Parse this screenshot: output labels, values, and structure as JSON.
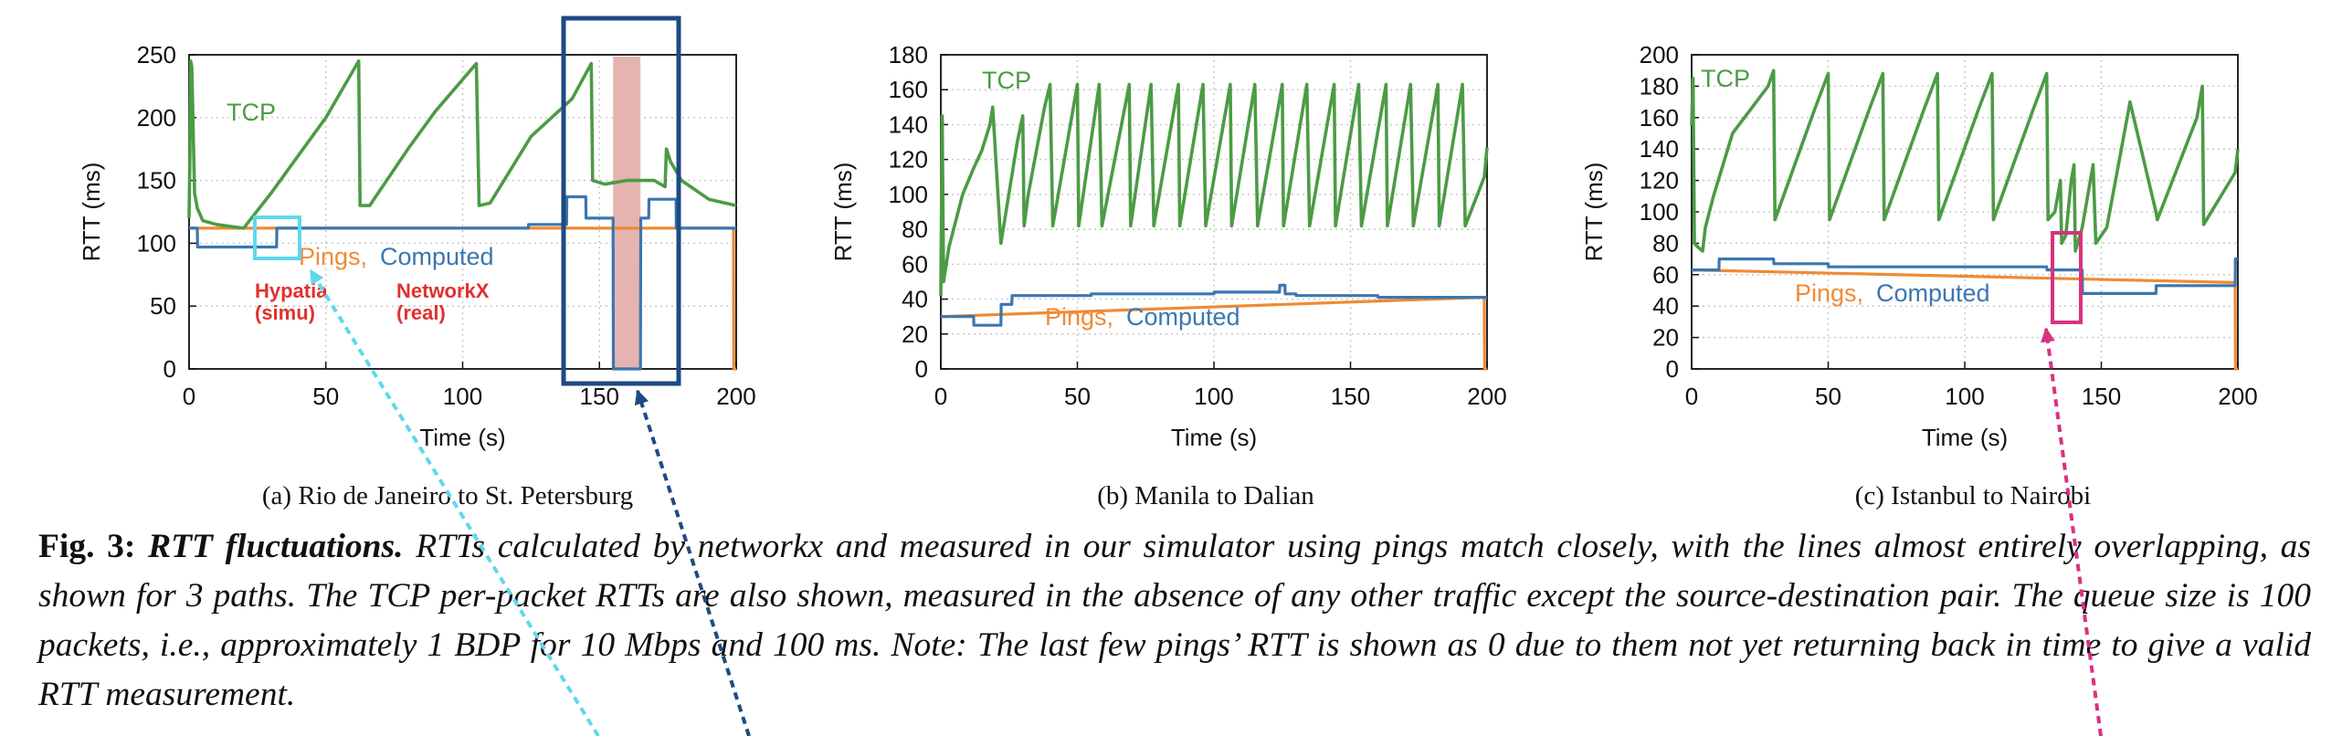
{
  "colors": {
    "tcp": "#4c9b45",
    "computed": "#3b76b0",
    "pings": "#f08a34",
    "grid": "#c8c8c8",
    "box_navy": "#1e4a82",
    "box_cyan": "#5fd8ee",
    "box_pink": "#d9327f",
    "shade": "#e6b4b0",
    "red_text": "#e03030"
  },
  "chart_data": [
    {
      "type": "line",
      "subcaption": "(a)  Rio de Janeiro to St. Petersburg",
      "xlabel": "Time (s)",
      "ylabel": "RTT (ms)",
      "xlim": [
        0,
        200
      ],
      "ylim": [
        0,
        250
      ],
      "xticks": [
        "0",
        "50",
        "100",
        "150",
        "200"
      ],
      "yticks": [
        "0",
        "50",
        "100",
        "150",
        "200",
        "250"
      ],
      "grid": true,
      "series": [
        {
          "name": "TCP",
          "x": [
            0,
            0.3,
            0.6,
            1,
            2,
            3,
            5,
            10,
            20,
            21,
            30,
            40,
            50,
            62,
            62.5,
            66,
            80,
            90,
            105,
            106,
            110,
            125,
            140,
            147,
            147.5,
            152,
            160,
            170,
            174,
            174.5,
            176,
            180,
            190,
            200
          ],
          "y": [
            120,
            170,
            245,
            240,
            140,
            128,
            118,
            115,
            112,
            115,
            140,
            170,
            200,
            245,
            130,
            130,
            175,
            205,
            243,
            130,
            132,
            185,
            215,
            243,
            150,
            147,
            150,
            150,
            145,
            175,
            165,
            150,
            135,
            130
          ]
        },
        {
          "name": "Computed",
          "x": [
            0,
            3,
            3.1,
            32,
            32.1,
            124,
            124.1,
            138,
            138.1,
            145,
            145.1,
            155,
            155.1,
            165,
            165.1,
            168,
            168.1,
            178,
            178.1,
            200
          ],
          "y": [
            112,
            112,
            97,
            97,
            112,
            112,
            115,
            115,
            137,
            137,
            120,
            120,
            0,
            0,
            120,
            120,
            135,
            135,
            112,
            112
          ]
        },
        {
          "name": "Pings",
          "x": [
            0,
            199,
            199.1,
            200
          ],
          "y": [
            112,
            112,
            0,
            0
          ]
        }
      ],
      "annotations": {
        "tcp_label": "TCP",
        "pings_label": "Pings,",
        "computed_label": "Computed",
        "hypatia_line1": "Hypatia",
        "hypatia_line2": "(simu)",
        "networkx_line1": "NetworkX",
        "networkx_line2": "(real)"
      }
    },
    {
      "type": "line",
      "subcaption": "(b)  Manila to Dalian",
      "xlabel": "Time (s)",
      "ylabel": "RTT (ms)",
      "xlim": [
        0,
        200
      ],
      "ylim": [
        0,
        180
      ],
      "xticks": [
        "0",
        "50",
        "100",
        "150",
        "200"
      ],
      "yticks": [
        "0",
        "20",
        "40",
        "60",
        "80",
        "100",
        "120",
        "140",
        "160",
        "180"
      ],
      "grid": true,
      "series": [
        {
          "name": "TCP",
          "x": [
            0,
            0.5,
            1,
            3,
            8,
            12,
            15,
            18,
            19,
            22,
            28,
            30,
            30.5,
            32,
            38,
            40,
            41,
            50,
            50.5,
            58,
            59,
            69,
            69.5,
            77,
            78,
            87,
            87.5,
            96,
            97,
            106,
            106.5,
            115,
            116,
            125,
            125.5,
            134,
            135,
            144,
            144.5,
            153,
            154,
            163,
            163.5,
            172,
            173,
            182,
            182.5,
            191,
            192,
            199,
            200
          ],
          "y": [
            42,
            145,
            50,
            70,
            100,
            115,
            125,
            140,
            150,
            72,
            130,
            145,
            82,
            100,
            150,
            163,
            82,
            163,
            82,
            163,
            82,
            163,
            82,
            163,
            82,
            163,
            82,
            163,
            82,
            163,
            82,
            163,
            82,
            163,
            82,
            163,
            82,
            163,
            82,
            163,
            82,
            163,
            82,
            163,
            82,
            163,
            82,
            163,
            82,
            110,
            127
          ]
        },
        {
          "name": "Computed",
          "x": [
            0,
            12,
            12.1,
            22,
            22.1,
            26,
            26.1,
            55,
            55.1,
            100,
            100.1,
            124,
            124.1,
            126,
            126.1,
            130,
            130.1,
            160,
            160.1,
            200
          ],
          "y": [
            30,
            30,
            25,
            25,
            37,
            37,
            42,
            42,
            43,
            43,
            44,
            44,
            48,
            48,
            43,
            43,
            42,
            42,
            41,
            41
          ]
        },
        {
          "name": "Pings",
          "x": [
            0,
            199,
            199.1,
            200
          ],
          "y": [
            30,
            41,
            0,
            0
          ]
        }
      ],
      "annotations": {
        "tcp_label": "TCP",
        "pings_label": "Pings,",
        "computed_label": "Computed"
      }
    },
    {
      "type": "line",
      "subcaption": "(c)  Istanbul to Nairobi",
      "xlabel": "Time (s)",
      "ylabel": "RTT (ms)",
      "xlim": [
        0,
        200
      ],
      "ylim": [
        0,
        200
      ],
      "xticks": [
        "0",
        "50",
        "100",
        "150",
        "200"
      ],
      "yticks": [
        "0",
        "20",
        "40",
        "60",
        "80",
        "100",
        "120",
        "140",
        "160",
        "180",
        "200"
      ],
      "grid": true,
      "series": [
        {
          "name": "TCP",
          "x": [
            0,
            0.5,
            1,
            2,
            4,
            5,
            8,
            15,
            28,
            30,
            30.5,
            45,
            50,
            50.5,
            65,
            70,
            70.5,
            85,
            90,
            90.5,
            105,
            110,
            110.5,
            125,
            130,
            130.5,
            133,
            135,
            135.5,
            137,
            139,
            140,
            140.5,
            143,
            147,
            148,
            152,
            160,
            160.5,
            170,
            170.5,
            185,
            187,
            187.5,
            199,
            200
          ],
          "y": [
            155,
            185,
            80,
            78,
            75,
            90,
            110,
            150,
            180,
            190,
            95,
            165,
            188,
            95,
            165,
            188,
            95,
            165,
            188,
            95,
            165,
            188,
            95,
            165,
            188,
            95,
            100,
            120,
            80,
            85,
            120,
            130,
            75,
            90,
            130,
            80,
            90,
            165,
            170,
            100,
            95,
            160,
            180,
            92,
            125,
            140
          ]
        },
        {
          "name": "Computed",
          "x": [
            0,
            10,
            10.1,
            30,
            30.1,
            50,
            50.1,
            130,
            130.1,
            143,
            143.1,
            170,
            170.1,
            199,
            199.1,
            200
          ],
          "y": [
            63,
            63,
            70,
            70,
            67,
            67,
            65,
            65,
            63,
            63,
            48,
            48,
            53,
            53,
            70,
            70
          ]
        },
        {
          "name": "Pings",
          "x": [
            0,
            199,
            199.1,
            200
          ],
          "y": [
            63,
            55,
            0,
            0
          ]
        }
      ],
      "annotations": {
        "tcp_label": "TCP",
        "pings_label": "Pings,",
        "computed_label": "Computed"
      }
    }
  ],
  "caption": {
    "label": "Fig. 3:",
    "title": "RTT fluctuations.",
    "text": "RTTs calculated by networkx and measured in our simulator using pings match closely, with the lines almost entirely overlapping, as shown for 3 paths. The TCP per-packet RTTs are also shown, measured in the absence of any other traffic except the source-destination pair. The queue size is 100 packets, i.e., approximately 1 BDP for 10 Mbps and 100 ms. Note: The last few pings’ RTT is shown as 0 due to them not yet returning back in time to give a valid RTT measurement."
  }
}
